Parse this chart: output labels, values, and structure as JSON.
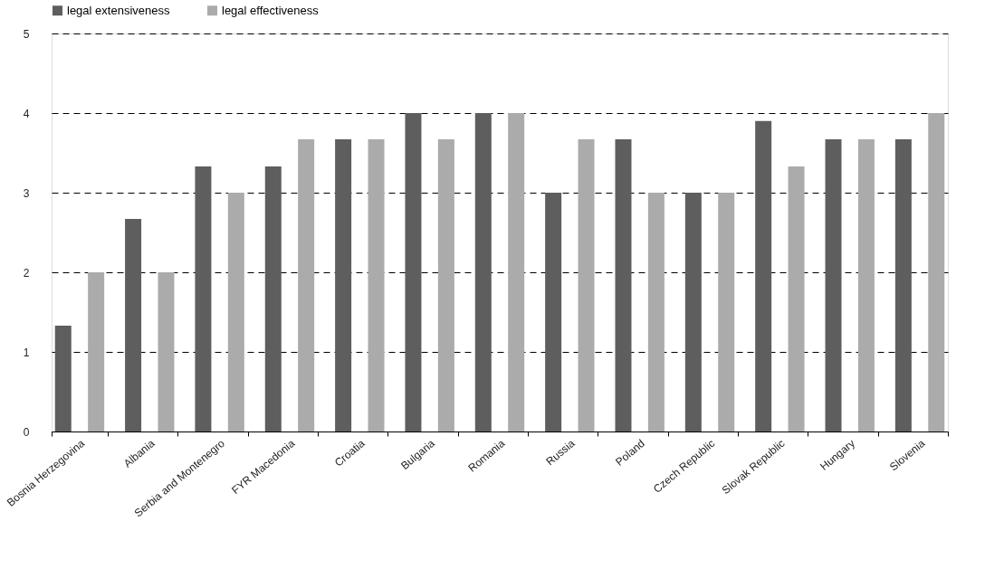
{
  "chart_data": {
    "type": "bar",
    "categories": [
      "Bosnia Herzegovina",
      "Albania",
      "Serbia and Montenegro",
      "FYR Macedonia",
      "Croatia",
      "Bulgaria",
      "Romania",
      "Russia",
      "Poland",
      "Czech Republic",
      "Slovak Republic",
      "Hungary",
      "Slovenia"
    ],
    "series": [
      {
        "name": "legal extensiveness",
        "color": "#5e5e5e",
        "values": [
          1.33,
          2.67,
          3.33,
          3.33,
          3.67,
          4,
          4,
          3,
          3.67,
          3,
          3.9,
          3.67,
          3.67
        ]
      },
      {
        "name": "legal effectiveness",
        "color": "#ababab",
        "values": [
          2,
          2,
          3,
          3.67,
          3.67,
          3.67,
          4,
          3.67,
          3,
          3,
          3.33,
          3.67,
          4
        ]
      }
    ],
    "ylim": [
      0,
      5
    ],
    "yticks": [
      0,
      1,
      2,
      3,
      4,
      5
    ],
    "grid": "y",
    "legend": "top"
  }
}
